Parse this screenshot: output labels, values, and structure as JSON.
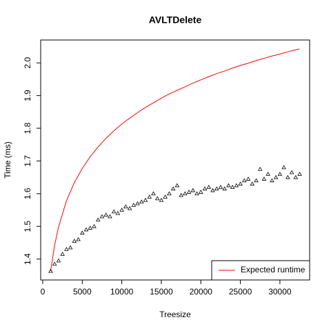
{
  "chart_data": {
    "type": "scatter",
    "title": "AVLTDelete",
    "x_label": "Treesize",
    "y_label": "Time (ms)",
    "xlim": [
      -260,
      33760
    ],
    "ylim": [
      1.336,
      2.07
    ],
    "xticks": [
      0,
      5000,
      10000,
      15000,
      20000,
      25000,
      30000
    ],
    "yticks": [
      1.4,
      1.5,
      1.6,
      1.7,
      1.8,
      1.9,
      {
        "value": 2,
        "label": "2.0"
      }
    ],
    "legend": "bottomright",
    "points": {
      "color": "#000000",
      "x": [
        1000,
        1500,
        2000,
        2500,
        3000,
        3500,
        4000,
        4500,
        5000,
        5500,
        6000,
        6500,
        7000,
        7500,
        8000,
        8500,
        9000,
        9500,
        10000,
        10500,
        11000,
        11500,
        12000,
        12500,
        13000,
        13500,
        14000,
        14500,
        15000,
        15500,
        16000,
        16500,
        17000,
        17500,
        18000,
        18500,
        19000,
        19500,
        20000,
        20500,
        21000,
        21500,
        22000,
        22500,
        23000,
        23500,
        24000,
        24500,
        25000,
        25500,
        26000,
        26500,
        27000,
        27500,
        28000,
        28500,
        29000,
        29500,
        30000,
        30500,
        31000,
        31500,
        32000,
        32500
      ],
      "values": [
        1.363,
        1.385,
        1.395,
        1.415,
        1.43,
        1.435,
        1.455,
        1.46,
        1.48,
        1.49,
        1.495,
        1.5,
        1.52,
        1.53,
        1.535,
        1.53,
        1.545,
        1.54,
        1.55,
        1.56,
        1.555,
        1.565,
        1.57,
        1.575,
        1.58,
        1.59,
        1.6,
        1.585,
        1.58,
        1.59,
        1.6,
        1.615,
        1.625,
        1.595,
        1.6,
        1.605,
        1.61,
        1.6,
        1.605,
        1.615,
        1.62,
        1.61,
        1.615,
        1.62,
        1.615,
        1.625,
        1.62,
        1.625,
        1.63,
        1.64,
        1.645,
        1.63,
        1.64,
        1.675,
        1.645,
        1.66,
        1.64,
        1.65,
        1.66,
        1.68,
        1.65,
        1.665,
        1.65,
        1.66
      ]
    },
    "series": [
      {
        "name": "Expected runtime",
        "color": "#ff0000",
        "x": [
          1000,
          1500,
          2000,
          3000,
          4000,
          5000,
          6000,
          7000,
          8000,
          9000,
          10000,
          11000,
          12000,
          13000,
          14000,
          15000,
          16000,
          17000,
          18000,
          19000,
          20000,
          21000,
          22000,
          23000,
          24000,
          25000,
          26000,
          27000,
          28000,
          29000,
          30000,
          31000,
          32000,
          32500
        ],
        "values": [
          1.363,
          1.442,
          1.498,
          1.578,
          1.634,
          1.677,
          1.713,
          1.743,
          1.769,
          1.792,
          1.813,
          1.831,
          1.848,
          1.864,
          1.878,
          1.892,
          1.905,
          1.916,
          1.927,
          1.938,
          1.948,
          1.958,
          1.967,
          1.975,
          1.984,
          1.992,
          1.999,
          2.007,
          2.014,
          2.021,
          2.027,
          2.034,
          2.04,
          2.043
        ]
      }
    ]
  }
}
